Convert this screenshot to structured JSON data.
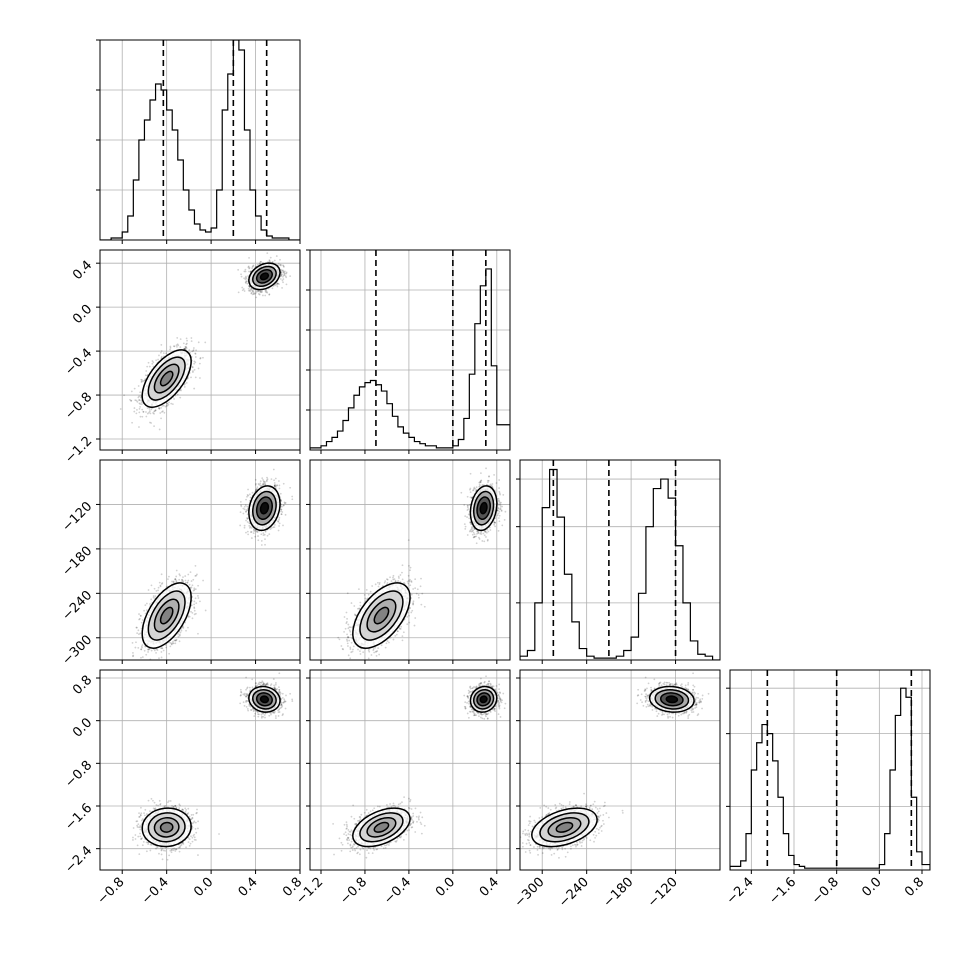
{
  "chart_data": {
    "type": "corner",
    "title": "",
    "grid": true,
    "parameters": [
      {
        "label": "",
        "range": [
          -1.0,
          0.8
        ],
        "ticks": [
          -0.8,
          -0.4,
          0.0,
          0.4,
          0.8
        ],
        "tick_labels": [
          "−0.8",
          "−0.4",
          "0.0",
          "0.4",
          "0.8"
        ]
      },
      {
        "label": "",
        "range": [
          -1.3,
          0.52
        ],
        "ticks": [
          -1.2,
          -0.8,
          -0.4,
          0.0,
          0.4
        ],
        "tick_labels": [
          "−1.2",
          "−0.8",
          "−0.4",
          "0.0",
          "0.4"
        ]
      },
      {
        "label": "",
        "range": [
          -330,
          -60
        ],
        "ticks": [
          -300,
          -240,
          -180,
          -120
        ],
        "tick_labels": [
          "−300",
          "−240",
          "−180",
          "−120"
        ]
      },
      {
        "label": "",
        "range": [
          -2.8,
          0.95
        ],
        "ticks": [
          -2.4,
          -1.6,
          -0.8,
          0.0,
          0.8
        ],
        "tick_labels": [
          "−2.4",
          "−1.6",
          "−0.8",
          "0.0",
          "0.8"
        ]
      }
    ],
    "histograms": [
      {
        "param": 0,
        "bins": [
          -1.0,
          -0.9,
          -0.8,
          -0.75,
          -0.7,
          -0.65,
          -0.6,
          -0.55,
          -0.5,
          -0.45,
          -0.4,
          -0.35,
          -0.3,
          -0.25,
          -0.2,
          -0.15,
          -0.1,
          -0.05,
          0.0,
          0.05,
          0.1,
          0.15,
          0.2,
          0.25,
          0.3,
          0.35,
          0.4,
          0.45,
          0.5,
          0.55,
          0.6,
          0.65,
          0.7,
          0.8
        ],
        "counts": [
          0,
          0.01,
          0.04,
          0.12,
          0.3,
          0.5,
          0.6,
          0.7,
          0.78,
          0.75,
          0.65,
          0.55,
          0.4,
          0.25,
          0.15,
          0.08,
          0.05,
          0.04,
          0.06,
          0.25,
          0.65,
          0.83,
          1.0,
          0.95,
          0.55,
          0.25,
          0.12,
          0.05,
          0.02,
          0.01,
          0.01,
          0.01,
          0.0
        ],
        "ylim": [
          0,
          1.0
        ],
        "yticks": [
          0.25,
          0.5,
          0.75,
          1.0
        ],
        "quantiles": [
          -0.43,
          0.2,
          0.5
        ]
      },
      {
        "param": 1,
        "bins": [
          -1.3,
          -1.2,
          -1.15,
          -1.1,
          -1.05,
          -1.0,
          -0.95,
          -0.9,
          -0.85,
          -0.8,
          -0.75,
          -0.7,
          -0.65,
          -0.6,
          -0.55,
          -0.5,
          -0.45,
          -0.4,
          -0.35,
          -0.3,
          -0.25,
          -0.2,
          -0.15,
          -0.1,
          -0.05,
          0.0,
          0.05,
          0.1,
          0.15,
          0.2,
          0.25,
          0.3,
          0.35,
          0.4,
          0.52
        ],
        "counts": [
          0.01,
          0.02,
          0.04,
          0.06,
          0.09,
          0.14,
          0.2,
          0.26,
          0.3,
          0.32,
          0.33,
          0.31,
          0.28,
          0.22,
          0.16,
          0.11,
          0.08,
          0.06,
          0.04,
          0.03,
          0.02,
          0.02,
          0.01,
          0.01,
          0.01,
          0.02,
          0.05,
          0.15,
          0.36,
          0.6,
          0.78,
          0.86,
          0.4,
          0.12
        ],
        "ylim": [
          0,
          0.95
        ],
        "yticks": [
          0.19,
          0.38,
          0.57,
          0.76,
          0.95
        ],
        "quantiles": [
          -0.7,
          0.0,
          0.3
        ]
      },
      {
        "param": 2,
        "bins": [
          -330,
          -320,
          -310,
          -300,
          -290,
          -280,
          -270,
          -260,
          -250,
          -240,
          -230,
          -220,
          -210,
          -200,
          -190,
          -180,
          -170,
          -160,
          -150,
          -140,
          -130,
          -120,
          -110,
          -100,
          -90,
          -80,
          -70,
          -60
        ],
        "counts": [
          0.02,
          0.05,
          0.3,
          0.8,
          1.0,
          0.75,
          0.45,
          0.2,
          0.06,
          0.02,
          0.01,
          0.01,
          0.01,
          0.02,
          0.05,
          0.12,
          0.35,
          0.7,
          0.9,
          0.95,
          0.85,
          0.6,
          0.3,
          0.1,
          0.03,
          0.02,
          0.0
        ],
        "ylim": [
          0,
          1.05
        ],
        "yticks": [
          0.3,
          0.7,
          0.95
        ],
        "quantiles": [
          -285,
          -210,
          -120
        ]
      },
      {
        "param": 3,
        "bins": [
          -2.8,
          -2.6,
          -2.5,
          -2.4,
          -2.3,
          -2.2,
          -2.1,
          -2.0,
          -1.9,
          -1.8,
          -1.7,
          -1.6,
          -1.5,
          -1.4,
          -1.2,
          -1.0,
          -0.8,
          -0.6,
          -0.4,
          -0.2,
          0.0,
          0.1,
          0.2,
          0.3,
          0.4,
          0.5,
          0.6,
          0.7,
          0.8,
          0.95
        ],
        "counts": [
          0.02,
          0.05,
          0.2,
          0.55,
          0.7,
          0.8,
          0.75,
          0.6,
          0.4,
          0.2,
          0.08,
          0.03,
          0.02,
          0.01,
          0.01,
          0.01,
          0.01,
          0.01,
          0.01,
          0.01,
          0.03,
          0.2,
          0.55,
          0.85,
          1.0,
          0.95,
          0.4,
          0.1,
          0.03
        ],
        "ylim": [
          0,
          1.1
        ],
        "yticks": [
          0.35,
          0.75,
          1.0
        ],
        "quantiles": [
          -2.1,
          -0.8,
          0.6
        ]
      }
    ],
    "modes": [
      {
        "weight": 0.5,
        "mean": [
          -0.4,
          -0.65,
          -270,
          -2.0
        ],
        "std": [
          0.11,
          0.13,
          22,
          0.18
        ],
        "corr": {
          "0-1": 0.6,
          "0-2": 0.55,
          "1-2": 0.55,
          "0-3": 0.05,
          "1-3": 0.45,
          "2-3": 0.4
        }
      },
      {
        "weight": 0.5,
        "mean": [
          0.48,
          0.28,
          -125,
          0.4
        ],
        "std": [
          0.07,
          0.06,
          15,
          0.12
        ],
        "corr": {
          "0-1": 0.3,
          "0-2": 0.2,
          "1-2": 0.2,
          "0-3": -0.1,
          "1-3": 0.1,
          "2-3": -0.1
        }
      }
    ],
    "contour_levels_sigma": [
      0.5,
      1.0,
      1.5,
      2.0
    ],
    "scatter_points_per_mode": 1400
  }
}
